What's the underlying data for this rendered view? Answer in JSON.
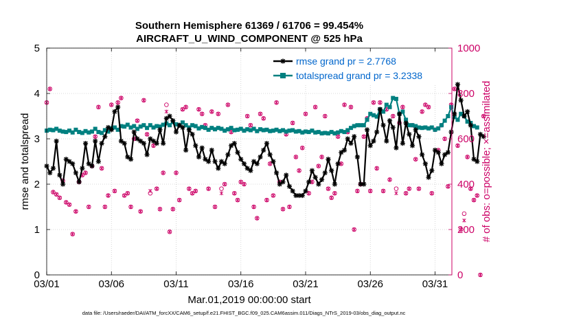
{
  "chart_data": {
    "type": "line",
    "title": "Southern Hemisphere 61369 / 61706 = 99.454%",
    "subtitle": "AIRCRAFT_U_WIND_COMPONENT @ 525 hPa",
    "xlabel": "Mar.01,2019 00:00:00 start",
    "ylabel_left": "rmse and totalspread",
    "ylabel_right": "# of obs: o=possible; ×=assimilated",
    "footer": "data file: /Users/raeder/DAI/ATM_forcXX/CAM6_setup/f.e21.FHIST_BGC.f09_025.CAM6assim.011/Diags_NTrS_2019-03/obs_diag_output.nc",
    "xlim": [
      1,
      32.3
    ],
    "ylim_left": [
      0,
      5
    ],
    "ylim_right": [
      0,
      1000
    ],
    "x_ticks": [
      1,
      6,
      11,
      16,
      21,
      26,
      31
    ],
    "x_tick_labels": [
      "03/01",
      "03/06",
      "03/11",
      "03/16",
      "03/21",
      "03/26",
      "03/31"
    ],
    "y_ticks_left": [
      0,
      1,
      2,
      3,
      4,
      5
    ],
    "y_ticks_right": [
      0,
      200,
      400,
      600,
      800,
      1000
    ],
    "colors": {
      "rmse": "#000000",
      "spread": "#008080",
      "obs": "#cc0066",
      "legend_text": "#0066cc",
      "right_axis": "#cc0066"
    },
    "legend": {
      "position": "top-right",
      "entries": [
        "rmse grand pr = 2.7768",
        "totalspread grand pr = 3.2338"
      ]
    },
    "series": [
      {
        "name": "rmse grand pr = 2.7768",
        "axis": "left",
        "x_start": 1.0,
        "x_step": 0.25,
        "values": [
          2.4,
          2.25,
          2.35,
          2.95,
          2.2,
          2.0,
          2.55,
          2.5,
          2.45,
          2.25,
          2.05,
          2.35,
          2.9,
          2.45,
          2.4,
          2.95,
          2.5,
          2.9,
          3.05,
          3.25,
          3.2,
          3.6,
          3.7,
          2.95,
          2.9,
          2.6,
          2.55,
          3.15,
          3.0,
          2.95,
          2.9,
          2.65,
          3.0,
          2.95,
          2.9,
          3.2,
          2.9,
          3.45,
          3.5,
          3.4,
          3.15,
          3.3,
          3.25,
          2.75,
          3.2,
          3.1,
          2.85,
          2.6,
          2.8,
          2.55,
          2.5,
          2.75,
          2.5,
          2.35,
          2.5,
          2.45,
          2.65,
          2.85,
          2.9,
          2.7,
          2.55,
          2.45,
          2.35,
          2.3,
          2.5,
          2.45,
          2.6,
          2.75,
          2.9,
          2.65,
          2.5,
          2.25,
          2.0,
          2.05,
          2.2,
          1.95,
          1.85,
          1.75,
          1.75,
          1.75,
          1.85,
          2.05,
          2.3,
          2.15,
          2.0,
          2.1,
          2.25,
          2.55,
          2.3,
          2.0,
          2.45,
          2.7,
          2.75,
          3.0,
          2.9,
          3.05,
          2.6,
          2.0,
          2.0,
          3.2,
          2.85,
          2.95,
          3.15,
          3.65,
          3.3,
          2.95,
          3.4,
          3.25,
          2.8,
          3.55,
          2.9,
          3.35,
          3.1,
          2.85,
          3.2,
          3.05,
          2.65,
          2.45,
          2.15,
          2.3,
          2.75,
          2.7,
          2.45,
          2.65,
          2.7,
          3.15,
          3.55,
          4.2,
          3.85,
          3.5,
          3.6,
          3.3,
          2.55,
          2.5,
          3.1,
          3.05
        ]
      },
      {
        "name": "totalspread grand pr = 3.2338",
        "axis": "left",
        "x_start": 1.0,
        "x_step": 0.25,
        "values": [
          3.18,
          3.2,
          3.19,
          3.22,
          3.18,
          3.16,
          3.15,
          3.18,
          3.14,
          3.2,
          3.15,
          3.13,
          3.17,
          3.14,
          3.16,
          3.22,
          3.15,
          3.13,
          3.19,
          3.16,
          3.23,
          3.25,
          3.2,
          3.28,
          3.27,
          3.31,
          3.25,
          3.28,
          3.22,
          3.27,
          3.3,
          3.24,
          3.3,
          3.25,
          3.28,
          3.27,
          3.31,
          3.34,
          3.3,
          3.37,
          3.32,
          3.3,
          3.36,
          3.3,
          3.25,
          3.3,
          3.28,
          3.23,
          3.26,
          3.24,
          3.2,
          3.24,
          3.21,
          3.24,
          3.22,
          3.18,
          3.21,
          3.24,
          3.19,
          3.2,
          3.22,
          3.18,
          3.21,
          3.19,
          3.22,
          3.17,
          3.21,
          3.19,
          3.2,
          3.17,
          3.18,
          3.2,
          3.17,
          3.19,
          3.16,
          3.18,
          3.19,
          3.16,
          3.17,
          3.14,
          3.16,
          3.15,
          3.18,
          3.14,
          3.15,
          3.12,
          3.13,
          3.12,
          3.15,
          3.12,
          3.14,
          3.17,
          3.15,
          3.19,
          3.24,
          3.28,
          3.3,
          3.3,
          3.3,
          3.42,
          3.55,
          3.52,
          3.49,
          3.65,
          3.6,
          3.75,
          3.7,
          3.9,
          3.88,
          3.55,
          3.6,
          3.42,
          3.3,
          3.3,
          3.28,
          3.25,
          3.24,
          3.25,
          3.23,
          3.25,
          3.2,
          3.23,
          3.3,
          3.4,
          3.5,
          3.7,
          3.48,
          3.42,
          3.55,
          3.5,
          3.38,
          3.35,
          3.28,
          3.25
        ]
      },
      {
        "name": "obs possible",
        "axis": "right",
        "x_start": 1.0,
        "x_step": 0.25,
        "values": [
          760,
          820,
          365,
          355,
          340,
          415,
          320,
          310,
          180,
          280,
          410,
          440,
          450,
          300,
          480,
          610,
          740,
          470,
          300,
          350,
          750,
          370,
          760,
          780,
          350,
          360,
          300,
          600,
          680,
          280,
          770,
          620,
          360,
          570,
          380,
          290,
          450,
          750,
          190,
          290,
          450,
          330,
          730,
          740,
          380,
          360,
          370,
          730,
          710,
          660,
          380,
          720,
          300,
          710,
          380,
          400,
          750,
          630,
          360,
          330,
          410,
          400,
          700,
          660,
          300,
          250,
          710,
          690,
          330,
          490,
          350,
          760,
          410,
          290,
          620,
          300,
          670,
          520,
          460,
          560,
          710,
          360,
          410,
          740,
          480,
          520,
          700,
          380,
          340,
          360,
          610,
          490,
          750,
          630,
          740,
          200,
          370,
          400,
          610,
          690,
          370,
          760,
          470,
          760,
          370,
          730,
          420,
          700,
          380,
          670,
          740,
          360,
          380,
          660,
          510,
          380,
          720,
          750,
          740,
          360,
          640,
          550,
          660,
          600,
          390,
          750,
          820,
          570,
          200,
          270,
          520,
          380,
          330,
          350,
          0,
          700
        ]
      },
      {
        "name": "obs assimilated",
        "axis": "right",
        "x_start": 1.0,
        "x_step": 0.25,
        "values": [
          760,
          820,
          365,
          355,
          340,
          415,
          320,
          310,
          180,
          280,
          410,
          440,
          450,
          300,
          480,
          610,
          740,
          470,
          300,
          350,
          750,
          370,
          760,
          780,
          350,
          360,
          300,
          600,
          680,
          280,
          770,
          620,
          370,
          570,
          380,
          290,
          450,
          720,
          190,
          290,
          450,
          330,
          730,
          740,
          380,
          360,
          370,
          730,
          710,
          660,
          380,
          720,
          300,
          710,
          360,
          400,
          750,
          630,
          360,
          330,
          410,
          400,
          700,
          660,
          300,
          250,
          710,
          690,
          330,
          490,
          350,
          760,
          410,
          290,
          620,
          300,
          670,
          520,
          460,
          560,
          710,
          360,
          410,
          740,
          480,
          520,
          700,
          380,
          340,
          360,
          610,
          490,
          750,
          630,
          740,
          200,
          370,
          400,
          610,
          690,
          370,
          760,
          470,
          760,
          370,
          730,
          420,
          700,
          360,
          670,
          740,
          360,
          380,
          660,
          510,
          380,
          720,
          750,
          740,
          360,
          640,
          550,
          660,
          600,
          390,
          750,
          820,
          570,
          200,
          240,
          520,
          380,
          330,
          350,
          0,
          700
        ]
      }
    ]
  }
}
